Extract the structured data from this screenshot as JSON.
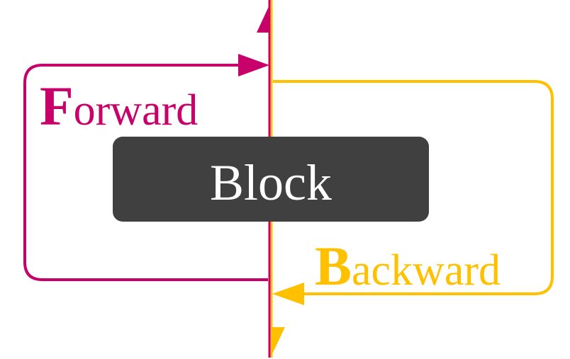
{
  "block": {
    "label": "Block"
  },
  "forward": {
    "initial": "F",
    "rest": "orward"
  },
  "backward": {
    "initial": "B",
    "rest": "ackward"
  },
  "colors": {
    "forward": "#C8006A",
    "backward": "#FFC000",
    "block_fill": "#404040",
    "block_text": "#FFFFFF",
    "background": "#FFFFFF"
  }
}
